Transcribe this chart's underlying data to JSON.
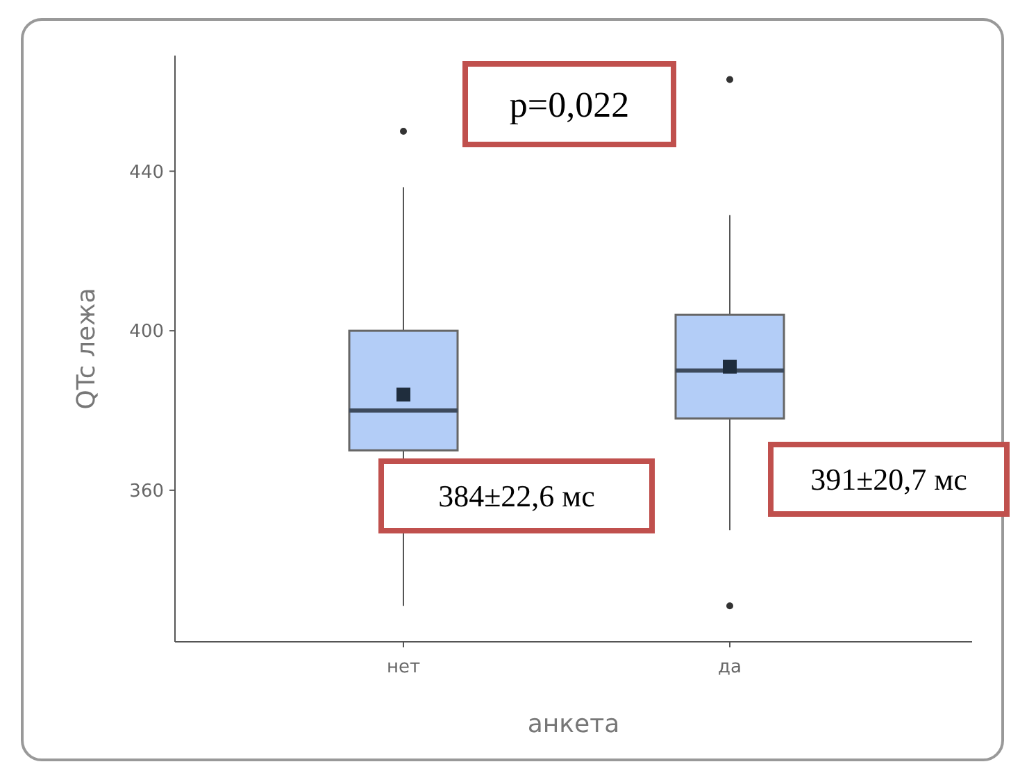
{
  "chart_data": {
    "type": "box",
    "xlabel": "анкета",
    "ylabel": "QTc лежа",
    "categories": [
      "нет",
      "да"
    ],
    "color": "#b3cdf7",
    "boxes": [
      {
        "low": 331,
        "q1": 370,
        "median": 380,
        "q3": 400,
        "high": 436,
        "mean": 384,
        "outliers": [
          450
        ]
      },
      {
        "low": 350,
        "q1": 378,
        "median": 390,
        "q3": 404,
        "high": 429,
        "mean": 391,
        "outliers": [
          463,
          331
        ]
      }
    ],
    "ylim": [
      322,
      469
    ],
    "yticks": [
      360,
      400,
      440
    ],
    "grid": false,
    "annotations": [
      "p=0,022",
      "384±22,6 мс",
      "391±20,7 мс"
    ]
  }
}
